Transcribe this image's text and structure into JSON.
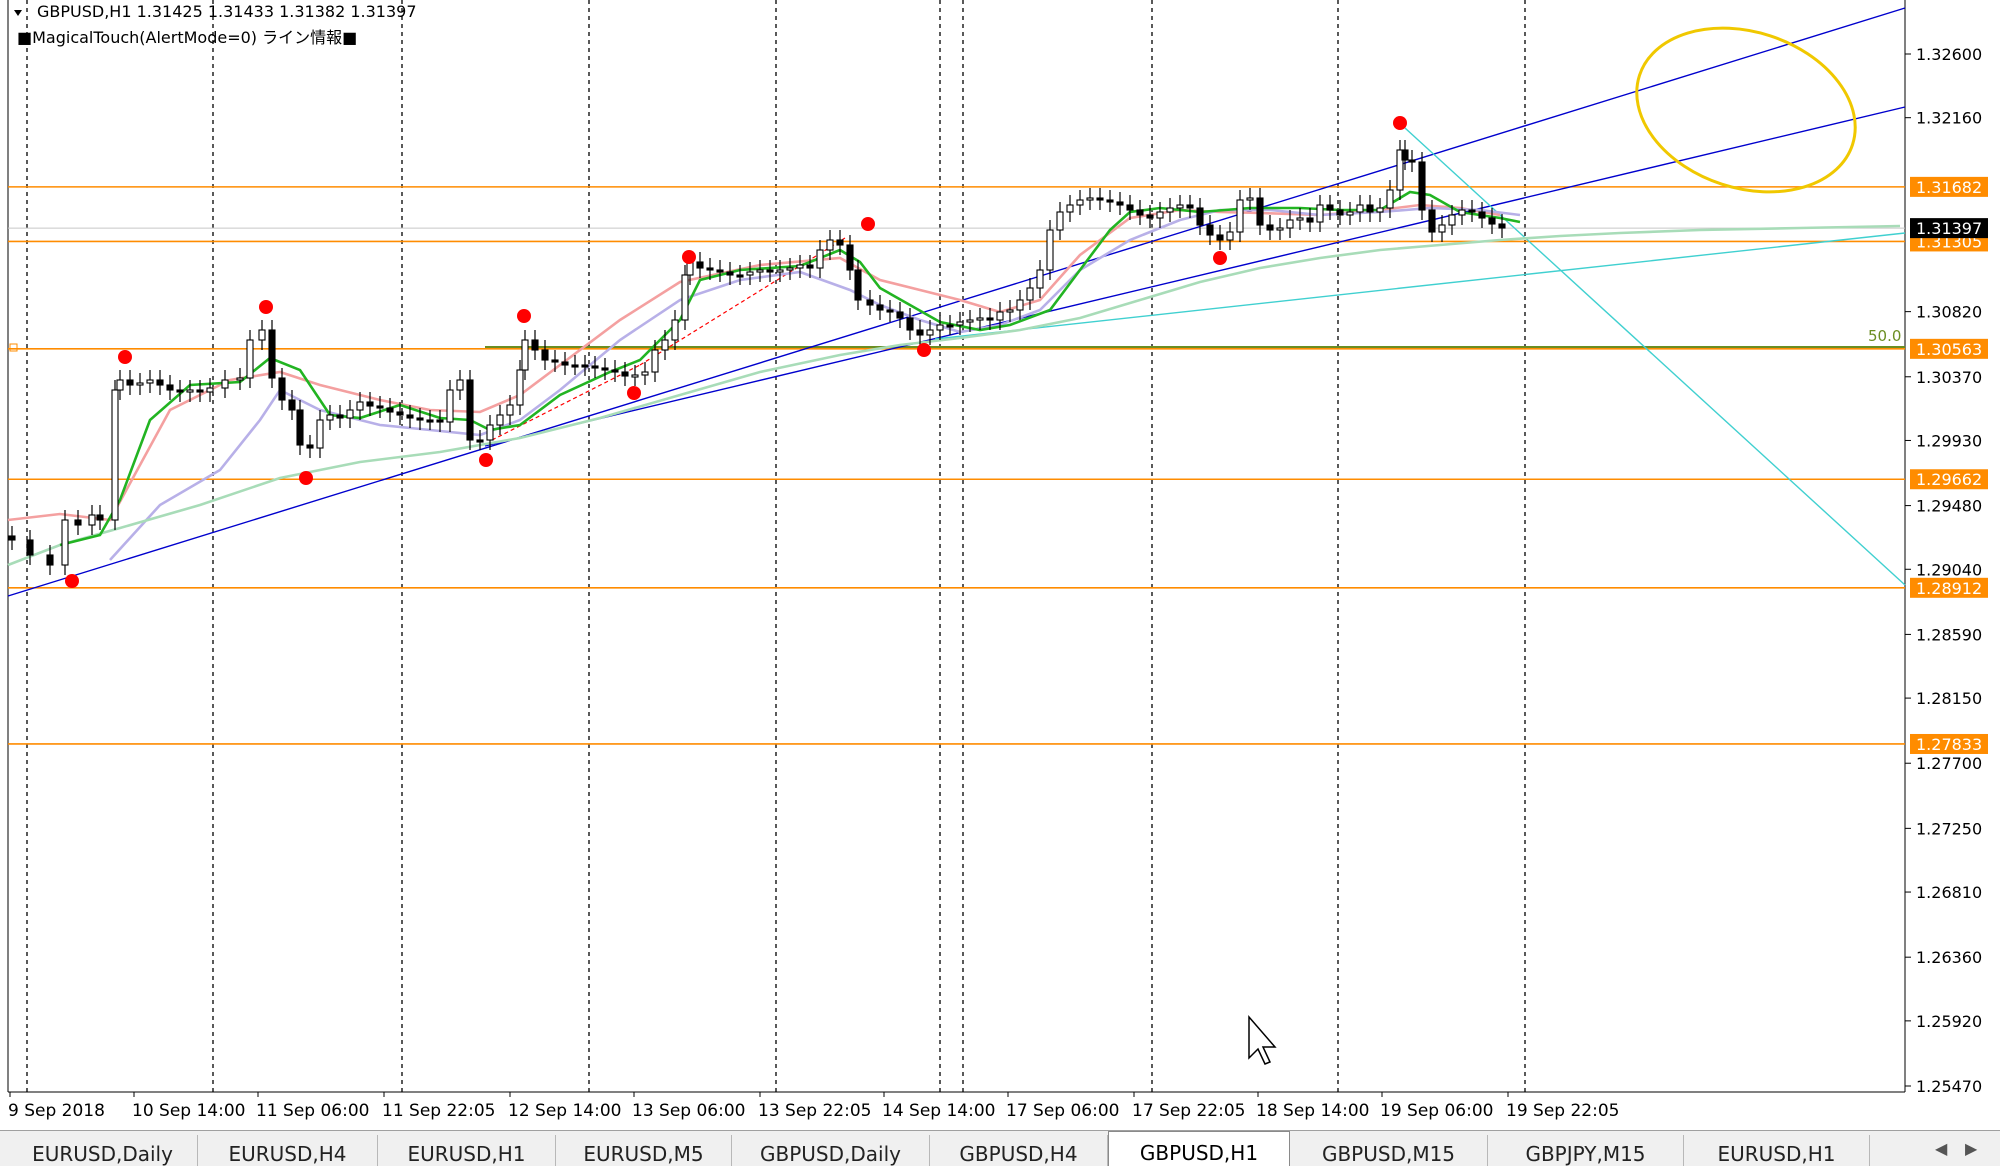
{
  "header": {
    "symbol_line": "GBPUSD,H1  1.31425 1.31433 1.31382 1.31397",
    "indicator_line": "■MagicalTouch(AlertMode=0) ライン情報■"
  },
  "price_axis": {
    "labels": [
      "1.32600",
      "1.32160",
      "1.31682",
      "1.31397",
      "1.31305",
      "1.30820",
      "1.30563",
      "1.30370",
      "1.29930",
      "1.29662",
      "1.29480",
      "1.29040",
      "1.28912",
      "1.28590",
      "1.28150",
      "1.27833",
      "1.27700",
      "1.27250",
      "1.26810",
      "1.26360",
      "1.25920",
      "1.25470"
    ]
  },
  "time_axis": {
    "labels": [
      "9 Sep 2018",
      "10 Sep 14:00",
      "11 Sep 06:00",
      "11 Sep 22:05",
      "12 Sep 14:00",
      "13 Sep 06:00",
      "13 Sep 22:05",
      "14 Sep 14:00",
      "17 Sep 06:00",
      "17 Sep 22:05",
      "18 Sep 14:00",
      "19 Sep 06:00",
      "19 Sep 22:05"
    ]
  },
  "fib_label": "50.0",
  "horizontal_levels": [
    {
      "price": "1.31682",
      "color": "#ff8c00"
    },
    {
      "price": "1.31305",
      "color": "#ff8c00"
    },
    {
      "price": "1.30563",
      "color": "#ff8c00"
    },
    {
      "price": "1.29662",
      "color": "#ff8c00"
    },
    {
      "price": "1.28912",
      "color": "#ff8c00"
    },
    {
      "price": "1.27833",
      "color": "#ff8c00"
    }
  ],
  "current_price": {
    "price": "1.31397",
    "color": "#000000"
  },
  "colors": {
    "level_line": "#ff8c00",
    "trend_line": "#0000cd",
    "ma_fast": "#22b422",
    "ma_mid": "#f4a0a0",
    "ma_slow": "#b8b0e8",
    "ma_long": "#a8dcb8",
    "cyan_line": "#40d0d0",
    "swing_dot": "#ff0000",
    "ellipse": "#f0c800",
    "fib_line": "#6b8e23"
  },
  "tabs": [
    {
      "label": "EURUSD,Daily",
      "active": false
    },
    {
      "label": "EURUSD,H4",
      "active": false
    },
    {
      "label": "EURUSD,H1",
      "active": false
    },
    {
      "label": "EURUSD,M5",
      "active": false
    },
    {
      "label": "GBPUSD,Daily",
      "active": false
    },
    {
      "label": "GBPUSD,H4",
      "active": false
    },
    {
      "label": "GBPUSD,H1",
      "active": true
    },
    {
      "label": "GBPUSD,M15",
      "active": false
    },
    {
      "label": "GBPJPY,M15",
      "active": false
    },
    {
      "label": "EURUSD,H1",
      "active": false
    }
  ]
}
